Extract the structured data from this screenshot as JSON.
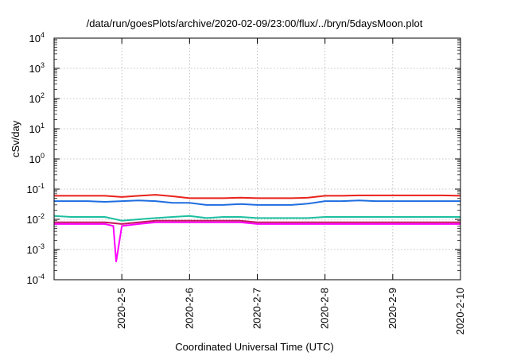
{
  "chart_data": {
    "type": "line",
    "title": "/data/run/goesPlots/archive/2020-02-09/23:00/flux/../bryn/5daysMoon.plot",
    "xlabel": "Coordinated Universal Time (UTC)",
    "ylabel": "cSv/day",
    "yscale": "log",
    "ylim": [
      0.0001,
      10000
    ],
    "y_ticks": [
      {
        "base": "10",
        "exp": "-4"
      },
      {
        "base": "10",
        "exp": "-3"
      },
      {
        "base": "10",
        "exp": "-2"
      },
      {
        "base": "10",
        "exp": "-1"
      },
      {
        "base": "10",
        "exp": "0"
      },
      {
        "base": "10",
        "exp": "1"
      },
      {
        "base": "10",
        "exp": "2"
      },
      {
        "base": "10",
        "exp": "3"
      },
      {
        "base": "10",
        "exp": "4"
      }
    ],
    "xlim": [
      "2020-02-04 00:00",
      "2020-02-10 00:00"
    ],
    "x_ticks": [
      "2020-2-5",
      "2020-2-6",
      "2020-2-7",
      "2020-2-8",
      "2020-2-9",
      "2020-2-10"
    ],
    "grid": true,
    "series": [
      {
        "color": "#e8221b",
        "x": [
          "2020-02-04 00:00",
          "2020-02-04 06:00",
          "2020-02-04 12:00",
          "2020-02-04 18:00",
          "2020-02-05 00:00",
          "2020-02-05 06:00",
          "2020-02-05 12:00",
          "2020-02-05 18:00",
          "2020-02-06 00:00",
          "2020-02-06 06:00",
          "2020-02-06 12:00",
          "2020-02-06 18:00",
          "2020-02-07 00:00",
          "2020-02-07 06:00",
          "2020-02-07 12:00",
          "2020-02-07 18:00",
          "2020-02-08 00:00",
          "2020-02-08 06:00",
          "2020-02-08 12:00",
          "2020-02-08 18:00",
          "2020-02-09 00:00",
          "2020-02-09 06:00",
          "2020-02-09 12:00",
          "2020-02-09 18:00",
          "2020-02-10 00:00"
        ],
        "values": [
          0.06,
          0.06,
          0.06,
          0.06,
          0.055,
          0.06,
          0.065,
          0.058,
          0.05,
          0.05,
          0.05,
          0.052,
          0.05,
          0.05,
          0.05,
          0.052,
          0.06,
          0.06,
          0.062,
          0.062,
          0.062,
          0.062,
          0.062,
          0.062,
          0.06
        ]
      },
      {
        "color": "#1e6de0",
        "x": [
          "2020-02-04 00:00",
          "2020-02-04 06:00",
          "2020-02-04 12:00",
          "2020-02-04 18:00",
          "2020-02-05 00:00",
          "2020-02-05 06:00",
          "2020-02-05 12:00",
          "2020-02-05 18:00",
          "2020-02-06 00:00",
          "2020-02-06 06:00",
          "2020-02-06 12:00",
          "2020-02-06 18:00",
          "2020-02-07 00:00",
          "2020-02-07 06:00",
          "2020-02-07 12:00",
          "2020-02-07 18:00",
          "2020-02-08 00:00",
          "2020-02-08 06:00",
          "2020-02-08 12:00",
          "2020-02-08 18:00",
          "2020-02-09 00:00",
          "2020-02-09 06:00",
          "2020-02-09 12:00",
          "2020-02-09 18:00",
          "2020-02-10 00:00"
        ],
        "values": [
          0.04,
          0.04,
          0.04,
          0.038,
          0.04,
          0.042,
          0.04,
          0.035,
          0.035,
          0.03,
          0.03,
          0.032,
          0.03,
          0.03,
          0.03,
          0.033,
          0.04,
          0.04,
          0.042,
          0.04,
          0.04,
          0.04,
          0.04,
          0.04,
          0.04
        ]
      },
      {
        "color": "#1dbfa0",
        "x": [
          "2020-02-04 00:00",
          "2020-02-04 06:00",
          "2020-02-04 12:00",
          "2020-02-04 18:00",
          "2020-02-05 00:00",
          "2020-02-05 06:00",
          "2020-02-05 12:00",
          "2020-02-05 18:00",
          "2020-02-06 00:00",
          "2020-02-06 06:00",
          "2020-02-06 12:00",
          "2020-02-06 18:00",
          "2020-02-07 00:00",
          "2020-02-07 06:00",
          "2020-02-07 12:00",
          "2020-02-07 18:00",
          "2020-02-08 00:00",
          "2020-02-08 06:00",
          "2020-02-08 12:00",
          "2020-02-08 18:00",
          "2020-02-09 00:00",
          "2020-02-09 06:00",
          "2020-02-09 12:00",
          "2020-02-09 18:00",
          "2020-02-10 00:00"
        ],
        "values": [
          0.013,
          0.012,
          0.012,
          0.012,
          0.009,
          0.01,
          0.011,
          0.012,
          0.013,
          0.011,
          0.012,
          0.012,
          0.011,
          0.011,
          0.011,
          0.011,
          0.012,
          0.012,
          0.012,
          0.012,
          0.012,
          0.012,
          0.012,
          0.012,
          0.012
        ]
      },
      {
        "color": "#c2185b",
        "x": [
          "2020-02-04 00:00",
          "2020-02-04 06:00",
          "2020-02-04 12:00",
          "2020-02-04 18:00",
          "2020-02-05 00:00",
          "2020-02-05 06:00",
          "2020-02-05 12:00",
          "2020-02-05 18:00",
          "2020-02-06 00:00",
          "2020-02-06 06:00",
          "2020-02-06 12:00",
          "2020-02-06 18:00",
          "2020-02-07 00:00",
          "2020-02-07 06:00",
          "2020-02-07 12:00",
          "2020-02-07 18:00",
          "2020-02-08 00:00",
          "2020-02-08 06:00",
          "2020-02-08 12:00",
          "2020-02-08 18:00",
          "2020-02-09 00:00",
          "2020-02-09 06:00",
          "2020-02-09 12:00",
          "2020-02-09 18:00",
          "2020-02-10 00:00"
        ],
        "values": [
          0.008,
          0.008,
          0.008,
          0.008,
          0.007,
          0.008,
          0.009,
          0.009,
          0.009,
          0.009,
          0.009,
          0.009,
          0.008,
          0.008,
          0.008,
          0.008,
          0.008,
          0.008,
          0.008,
          0.008,
          0.008,
          0.008,
          0.008,
          0.008,
          0.008
        ]
      },
      {
        "color": "#ff00ff",
        "x": [
          "2020-02-04 00:00",
          "2020-02-04 06:00",
          "2020-02-04 12:00",
          "2020-02-04 18:00",
          "2020-02-04 21:00",
          "2020-02-04 22:00",
          "2020-02-05 00:00",
          "2020-02-05 06:00",
          "2020-02-05 12:00",
          "2020-02-05 18:00",
          "2020-02-06 00:00",
          "2020-02-06 06:00",
          "2020-02-06 12:00",
          "2020-02-06 18:00",
          "2020-02-07 00:00",
          "2020-02-07 06:00",
          "2020-02-07 12:00",
          "2020-02-07 18:00",
          "2020-02-08 00:00",
          "2020-02-08 06:00",
          "2020-02-08 12:00",
          "2020-02-08 18:00",
          "2020-02-09 00:00",
          "2020-02-09 06:00",
          "2020-02-09 12:00",
          "2020-02-09 18:00",
          "2020-02-10 00:00"
        ],
        "values": [
          0.007,
          0.007,
          0.007,
          0.007,
          0.006,
          0.0004,
          0.006,
          0.007,
          0.008,
          0.008,
          0.008,
          0.008,
          0.008,
          0.008,
          0.007,
          0.007,
          0.007,
          0.007,
          0.007,
          0.007,
          0.007,
          0.007,
          0.007,
          0.007,
          0.007,
          0.007,
          0.007
        ]
      }
    ]
  }
}
